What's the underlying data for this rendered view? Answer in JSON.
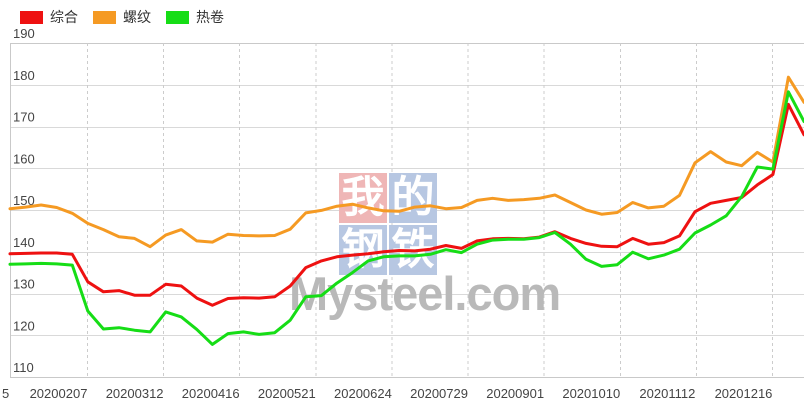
{
  "legend": {
    "items": [
      {
        "label": "综合",
        "color": "#ee1111"
      },
      {
        "label": "螺纹",
        "color": "#f59a23"
      },
      {
        "label": "热卷",
        "color": "#16dd16"
      }
    ]
  },
  "watermark": {
    "tiles": [
      {
        "char": "我",
        "bg": "#efb6b6"
      },
      {
        "char": "的",
        "bg": "#b7c7e2"
      },
      {
        "char": "钢",
        "bg": "#b7c7e2"
      },
      {
        "char": "铁",
        "bg": "#b7c7e2"
      }
    ],
    "text": "Mysteel.com"
  },
  "chart_data": {
    "type": "line",
    "title": "",
    "x_partial_first_label": "5",
    "x_tick_labels": [
      "20200207",
      "20200312",
      "20200416",
      "20200521",
      "20200624",
      "20200729",
      "20200901",
      "20201010",
      "20201112",
      "20201216"
    ],
    "y_ticks": [
      190,
      180,
      170,
      160,
      150,
      140,
      130,
      120,
      110
    ],
    "ylim": [
      110,
      190
    ],
    "grid": {
      "horizontal": "solid",
      "vertical": "dashed"
    },
    "legend_position": "top-left",
    "axis_label_color": "#444444",
    "grid_color": "#d9d9d9",
    "border_color": "#c9c9c9",
    "series": [
      {
        "name": "综合",
        "color": "#ee1111",
        "values": [
          139.5,
          139.6,
          139.7,
          139.7,
          139.4,
          132.8,
          130.4,
          130.7,
          129.6,
          129.6,
          132.2,
          131.8,
          128.9,
          127.2,
          128.8,
          129.0,
          128.9,
          129.2,
          131.8,
          136.2,
          137.8,
          138.8,
          139.2,
          139.5,
          140.0,
          140.3,
          140.2,
          140.6,
          141.5,
          140.8,
          142.6,
          143.1,
          143.2,
          143.1,
          143.5,
          144.8,
          143.2,
          142.0,
          141.3,
          141.2,
          143.2,
          141.8,
          142.2,
          143.8,
          149.6,
          151.6,
          152.3,
          153.0,
          156.0,
          158.5,
          175.3,
          168.0
        ]
      },
      {
        "name": "螺纹",
        "color": "#f59a23",
        "values": [
          150.3,
          150.7,
          151.2,
          150.6,
          149.2,
          146.8,
          145.3,
          143.6,
          143.2,
          141.2,
          144.0,
          145.3,
          142.6,
          142.3,
          144.2,
          143.9,
          143.8,
          143.9,
          145.4,
          149.3,
          149.9,
          150.9,
          151.4,
          150.5,
          149.8,
          149.7,
          150.7,
          151.0,
          150.3,
          150.6,
          152.3,
          152.8,
          152.3,
          152.5,
          152.8,
          153.6,
          151.8,
          150.0,
          149.0,
          149.4,
          151.8,
          150.5,
          150.9,
          153.5,
          161.3,
          164.0,
          161.5,
          160.6,
          163.8,
          161.5,
          181.8,
          175.8
        ]
      },
      {
        "name": "热卷",
        "color": "#16dd16",
        "values": [
          137.0,
          137.1,
          137.2,
          137.1,
          136.8,
          125.8,
          121.5,
          121.8,
          121.2,
          120.8,
          125.6,
          124.4,
          121.4,
          117.8,
          120.4,
          120.8,
          120.2,
          120.6,
          123.6,
          129.2,
          129.5,
          132.5,
          135.0,
          137.8,
          138.8,
          139.0,
          139.0,
          139.4,
          140.5,
          139.8,
          141.8,
          142.8,
          143.0,
          143.0,
          143.4,
          144.6,
          141.8,
          138.2,
          136.5,
          136.9,
          139.9,
          138.3,
          139.2,
          140.6,
          144.5,
          146.4,
          148.6,
          153.2,
          160.3,
          159.8,
          178.3,
          171.2
        ]
      }
    ]
  }
}
